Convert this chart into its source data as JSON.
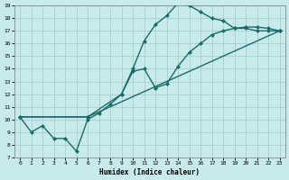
{
  "xlabel": "Humidex (Indice chaleur)",
  "bg_color": "#c8eaea",
  "grid_color": "#aacece",
  "line_color": "#1a6b6b",
  "xlim": [
    -0.5,
    23.5
  ],
  "ylim": [
    7,
    19
  ],
  "xticks": [
    0,
    1,
    2,
    3,
    4,
    5,
    6,
    7,
    8,
    9,
    10,
    11,
    12,
    13,
    14,
    15,
    16,
    17,
    18,
    19,
    20,
    21,
    22,
    23
  ],
  "yticks": [
    7,
    8,
    9,
    10,
    11,
    12,
    13,
    14,
    15,
    16,
    17,
    18,
    19
  ],
  "line1_x": [
    0,
    1,
    2,
    3,
    4,
    5,
    6,
    7,
    8,
    9,
    10,
    11,
    12,
    13,
    14,
    15,
    16,
    17,
    18,
    19,
    20,
    21,
    22,
    23
  ],
  "line1_y": [
    10.2,
    9.0,
    9.5,
    8.5,
    8.5,
    7.5,
    10.0,
    10.5,
    11.2,
    12.0,
    14.0,
    16.2,
    17.5,
    18.2,
    19.2,
    19.0,
    18.5,
    18.0,
    17.8,
    17.2,
    17.2,
    17.0,
    17.0,
    17.0
  ],
  "line2_x": [
    0,
    6,
    9,
    10,
    11,
    12,
    13,
    14,
    15,
    16,
    17,
    18,
    19,
    20,
    21,
    22,
    23
  ],
  "line2_y": [
    10.2,
    10.2,
    12.0,
    13.8,
    14.0,
    12.5,
    12.8,
    14.2,
    15.3,
    16.0,
    16.7,
    17.0,
    17.2,
    17.3,
    17.3,
    17.2,
    17.0
  ],
  "line3_x": [
    0,
    6,
    23
  ],
  "line3_y": [
    10.2,
    10.2,
    17.0
  ],
  "markersize": 2.5,
  "linewidth": 1.0
}
